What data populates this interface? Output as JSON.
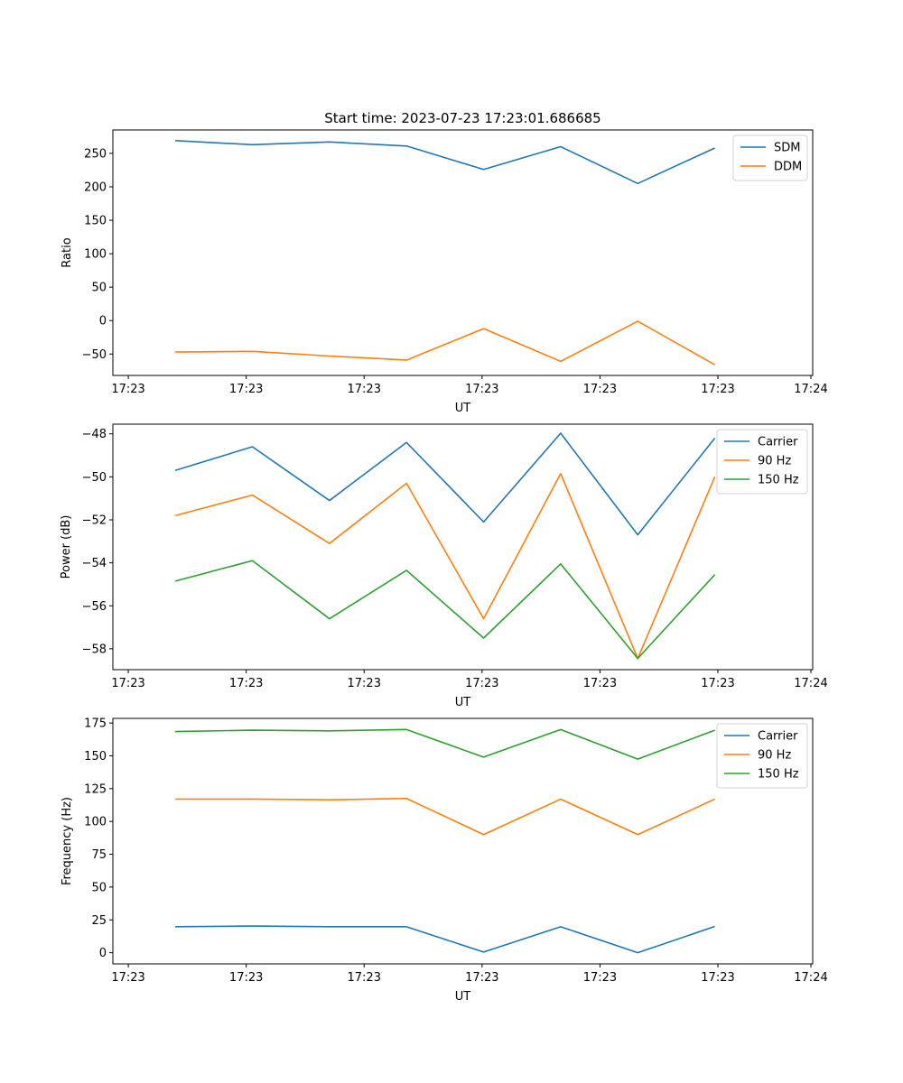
{
  "figure": {
    "title": "Start time: 2023-07-23 17:23:01.686685"
  },
  "colors": {
    "blue": "#1f77b4",
    "orange": "#ff7f0e",
    "green": "#2ca02c"
  },
  "chart_data": [
    {
      "type": "line",
      "title": "Start time: 2023-07-23 17:23:01.686685",
      "xlabel": "UT",
      "ylabel": "Ratio",
      "x": [
        1,
        2,
        3,
        4,
        5,
        6,
        7,
        8
      ],
      "xlim": [
        0.19,
        9.27
      ],
      "xticks": [
        0.39,
        1.92,
        3.45,
        4.98,
        6.51,
        8.04,
        9.57
      ],
      "xtick_labels": [
        "17:23",
        "17:23",
        "17:23",
        "17:23",
        "17:23",
        "17:23",
        "17:24"
      ],
      "ylim": [
        -82,
        285
      ],
      "yticks": [
        -50,
        0,
        50,
        100,
        150,
        200,
        250
      ],
      "legend": "top-right",
      "series": [
        {
          "name": "SDM",
          "color": "#1f77b4",
          "values": [
            269,
            263,
            267,
            261,
            226,
            260,
            205,
            258
          ]
        },
        {
          "name": "DDM",
          "color": "#ff7f0e",
          "values": [
            -47,
            -46,
            -53,
            -59,
            -12,
            -61,
            -1,
            -66
          ]
        }
      ]
    },
    {
      "type": "line",
      "title": "",
      "xlabel": "UT",
      "ylabel": "Power (dB)",
      "x": [
        1,
        2,
        3,
        4,
        5,
        6,
        7,
        8
      ],
      "xlim": [
        0.19,
        9.27
      ],
      "xticks": [
        0.39,
        1.92,
        3.45,
        4.98,
        6.51,
        8.04,
        9.57
      ],
      "xtick_labels": [
        "17:23",
        "17:23",
        "17:23",
        "17:23",
        "17:23",
        "17:23",
        "17:24"
      ],
      "ylim": [
        -58.97,
        -47.55
      ],
      "yticks": [
        -58,
        -56,
        -54,
        -52,
        -50,
        -48
      ],
      "legend": "top-right",
      "series": [
        {
          "name": "Carrier",
          "color": "#1f77b4",
          "values": [
            -49.7,
            -48.6,
            -51.1,
            -48.4,
            -52.1,
            -47.97,
            -52.7,
            -48.2
          ]
        },
        {
          "name": "90 Hz",
          "color": "#ff7f0e",
          "values": [
            -51.8,
            -50.85,
            -53.1,
            -50.3,
            -56.6,
            -49.85,
            -58.45,
            -50.0
          ]
        },
        {
          "name": "150 Hz",
          "color": "#2ca02c",
          "values": [
            -54.85,
            -53.9,
            -56.6,
            -54.35,
            -57.5,
            -54.05,
            -58.45,
            -54.55
          ]
        }
      ]
    },
    {
      "type": "line",
      "title": "",
      "xlabel": "UT",
      "ylabel": "Frequency (Hz)",
      "x": [
        1,
        2,
        3,
        4,
        5,
        6,
        7,
        8
      ],
      "xlim": [
        0.19,
        9.27
      ],
      "xticks": [
        0.39,
        1.92,
        3.45,
        4.98,
        6.51,
        8.04,
        9.57
      ],
      "xtick_labels": [
        "17:23",
        "17:23",
        "17:23",
        "17:23",
        "17:23",
        "17:23",
        "17:24"
      ],
      "ylim": [
        -8.5,
        178.5
      ],
      "yticks": [
        0,
        25,
        50,
        75,
        100,
        125,
        150,
        175
      ],
      "legend": "top-right",
      "series": [
        {
          "name": "Carrier",
          "color": "#1f77b4",
          "values": [
            19.8,
            20.3,
            19.8,
            19.8,
            0.5,
            19.8,
            0,
            20
          ]
        },
        {
          "name": "90 Hz",
          "color": "#ff7f0e",
          "values": [
            117,
            117,
            116.5,
            117.5,
            90,
            117,
            90,
            117
          ]
        },
        {
          "name": "150 Hz",
          "color": "#2ca02c",
          "values": [
            168.5,
            169.5,
            169,
            170,
            149,
            170,
            147.5,
            169.5
          ]
        }
      ]
    }
  ]
}
